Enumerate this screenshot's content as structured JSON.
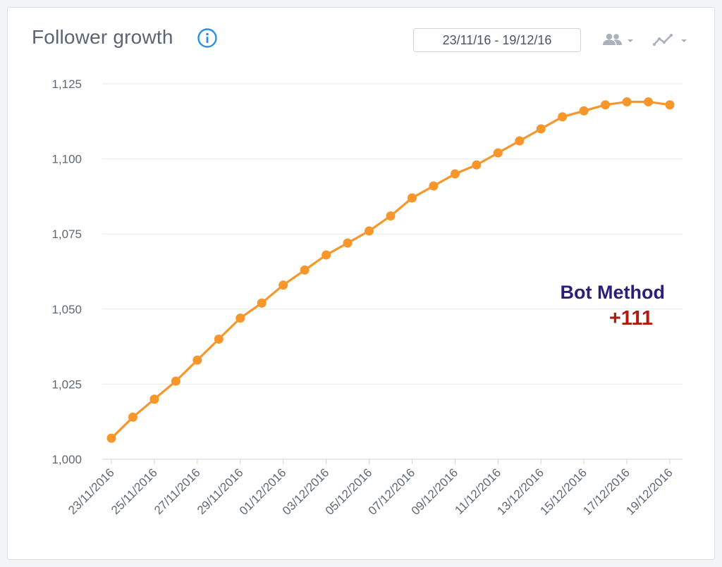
{
  "header": {
    "title": "Follower growth",
    "date_range": "23/11/16 - 19/12/16"
  },
  "icons": {
    "info": "info-icon",
    "audience": "people-icon",
    "chart_type": "line-chart-icon",
    "dropdown": "chevron-down-icon"
  },
  "colors": {
    "line": "#f7962b",
    "accent": "#2b8ee8",
    "annotation_title": "#2a1f78",
    "annotation_value": "#b01a12"
  },
  "annotation": {
    "title": "Bot Method",
    "value": "+111"
  },
  "chart_data": {
    "type": "line",
    "title": "Follower growth",
    "xlabel": "",
    "ylabel": "",
    "ylim": [
      1000,
      1125
    ],
    "y_ticks": [
      "1,000",
      "1,025",
      "1,050",
      "1,075",
      "1,100",
      "1,125"
    ],
    "y_tick_values": [
      1000,
      1025,
      1050,
      1075,
      1100,
      1125
    ],
    "grid": true,
    "legend": "none",
    "x_tick_labels": [
      "23/11/2016",
      "25/11/2016",
      "27/11/2016",
      "29/11/2016",
      "01/12/2016",
      "03/12/2016",
      "05/12/2016",
      "07/12/2016",
      "09/12/2016",
      "11/12/2016",
      "13/12/2016",
      "15/12/2016",
      "17/12/2016",
      "19/12/2016"
    ],
    "x": [
      "23/11/2016",
      "24/11/2016",
      "25/11/2016",
      "26/11/2016",
      "27/11/2016",
      "28/11/2016",
      "29/11/2016",
      "30/11/2016",
      "01/12/2016",
      "02/12/2016",
      "03/12/2016",
      "04/12/2016",
      "05/12/2016",
      "06/12/2016",
      "07/12/2016",
      "08/12/2016",
      "09/12/2016",
      "10/12/2016",
      "11/12/2016",
      "12/12/2016",
      "13/12/2016",
      "14/12/2016",
      "15/12/2016",
      "16/12/2016",
      "17/12/2016",
      "18/12/2016",
      "19/12/2016"
    ],
    "series": [
      {
        "values": [
          1007,
          1014,
          1020,
          1026,
          1033,
          1040,
          1047,
          1052,
          1058,
          1063,
          1068,
          1072,
          1076,
          1081,
          1087,
          1091,
          1095,
          1098,
          1102,
          1106,
          1110,
          1114,
          1116,
          1118,
          1119,
          1119,
          1118
        ]
      }
    ]
  }
}
